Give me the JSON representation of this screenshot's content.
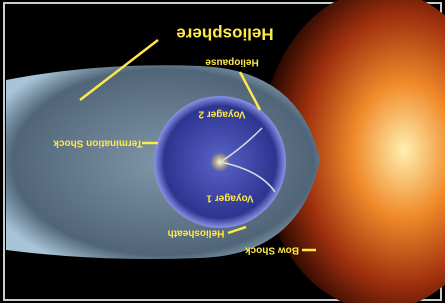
{
  "title": "Heliosphere",
  "labels": [
    "Heliopause",
    "Voyager 2",
    "Termination Shock",
    "Voyager 1",
    "Heliosheath",
    "Bow Shock"
  ]
}
